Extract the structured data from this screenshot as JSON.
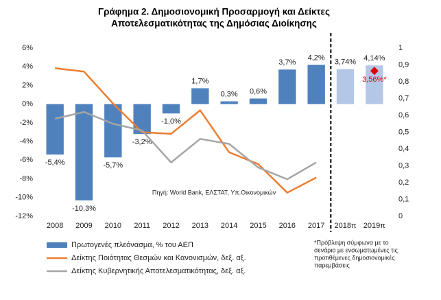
{
  "chart_data": {
    "type": "bar_line",
    "title": [
      "Γράφημα 2. Δημοσιονομική Προσαρμογή και Δείκτες",
      "Αποτελεσματικότητας της Δημόσιας Διοίκησης"
    ],
    "categories": [
      "2008",
      "2009",
      "2010",
      "2011",
      "2012",
      "2013",
      "2014",
      "2015",
      "2016",
      "2017",
      "2018π",
      "2019π"
    ],
    "series": [
      {
        "name": "Πρωτογενές πλεόνασμα, % του ΑΕΠ",
        "type": "bar",
        "color": "#4f81bd",
        "colors": [
          "#4f81bd",
          "#4f81bd",
          "#4f81bd",
          "#4f81bd",
          "#4f81bd",
          "#4f81bd",
          "#4f81bd",
          "#4f81bd",
          "#4f81bd",
          "#4f81bd",
          "#b4c7e7",
          "#b4c7e7"
        ],
        "values": [
          -5.4,
          -10.3,
          -5.7,
          -3.2,
          -1.0,
          1.7,
          0.3,
          0.6,
          3.7,
          4.2,
          3.74,
          4.14
        ],
        "value_labels": [
          "-5,4%",
          "-10,3%",
          "-5,7%",
          "-3,2%",
          "-1,0%",
          "1,7%",
          "0,3%",
          "0,6%",
          "3,7%",
          "4,2%",
          "3,74%",
          "4,14%"
        ]
      },
      {
        "name": "Δείκτης Ποιότητας Θεσμών και Κανονισμών, δεξ. αξ.",
        "type": "line",
        "axis": "y2",
        "color": "#ed7d31",
        "values": [
          0.88,
          0.86,
          0.67,
          0.5,
          0.49,
          0.63,
          0.38,
          0.31,
          0.14,
          0.23,
          null,
          null
        ]
      },
      {
        "name": "Δείκτης Κυβερνητικής Αποτελεσματικότητας, δεξ. αξ.",
        "type": "line",
        "axis": "y2",
        "color": "#a5a5a5",
        "values": [
          0.58,
          0.62,
          0.55,
          0.51,
          0.32,
          0.46,
          0.43,
          0.29,
          0.22,
          0.32,
          null,
          null
        ]
      }
    ],
    "forecast": {
      "color": "#e00000",
      "values": [
        null,
        null,
        null,
        null,
        null,
        null,
        null,
        null,
        null,
        null,
        null,
        3.56
      ],
      "value_labels": [
        null,
        null,
        null,
        null,
        null,
        null,
        null,
        null,
        null,
        null,
        null,
        "3,56%*"
      ]
    },
    "ylim": [
      -12,
      6
    ],
    "yticks": [
      {
        "value": -12,
        "label": "-12%"
      },
      {
        "value": -10,
        "label": "-10%"
      },
      {
        "value": -8,
        "label": "-8%"
      },
      {
        "value": -6,
        "label": "-6%"
      },
      {
        "value": -4,
        "label": "-4%"
      },
      {
        "value": -2,
        "label": "-2%"
      },
      {
        "value": 0,
        "label": "0%"
      },
      {
        "value": 2,
        "label": "2%"
      },
      {
        "value": 4,
        "label": "4%"
      },
      {
        "value": 6,
        "label": "6%"
      }
    ],
    "y2lim": [
      0,
      1
    ],
    "y2ticks": [
      0,
      {
        "value": 0.1,
        "label": "0,1"
      },
      {
        "value": 0.2,
        "label": "0,2"
      },
      {
        "value": 0.3,
        "label": "0,3"
      },
      {
        "value": 0.4,
        "label": "0,4"
      },
      {
        "value": 0.5,
        "label": "0,5"
      },
      {
        "value": 0.6,
        "label": "0,6"
      },
      {
        "value": 0.7,
        "label": "0,7"
      },
      {
        "value": 0.8,
        "label": "0,8"
      },
      {
        "value": 0.9,
        "label": "0,9"
      },
      1
    ],
    "source": "Πηγή: World Bank, ΕΛΣΤΑΤ, Υπ.Οικονομικών",
    "footnote": [
      "*Πρόβλεψη  σύμφωνα με το",
      "σενάριο με ενσωματωμένες  τις",
      "προτιθέμενες δημοσιονομικές",
      "παρεμβάσεις"
    ],
    "legend": "bottom-left"
  }
}
